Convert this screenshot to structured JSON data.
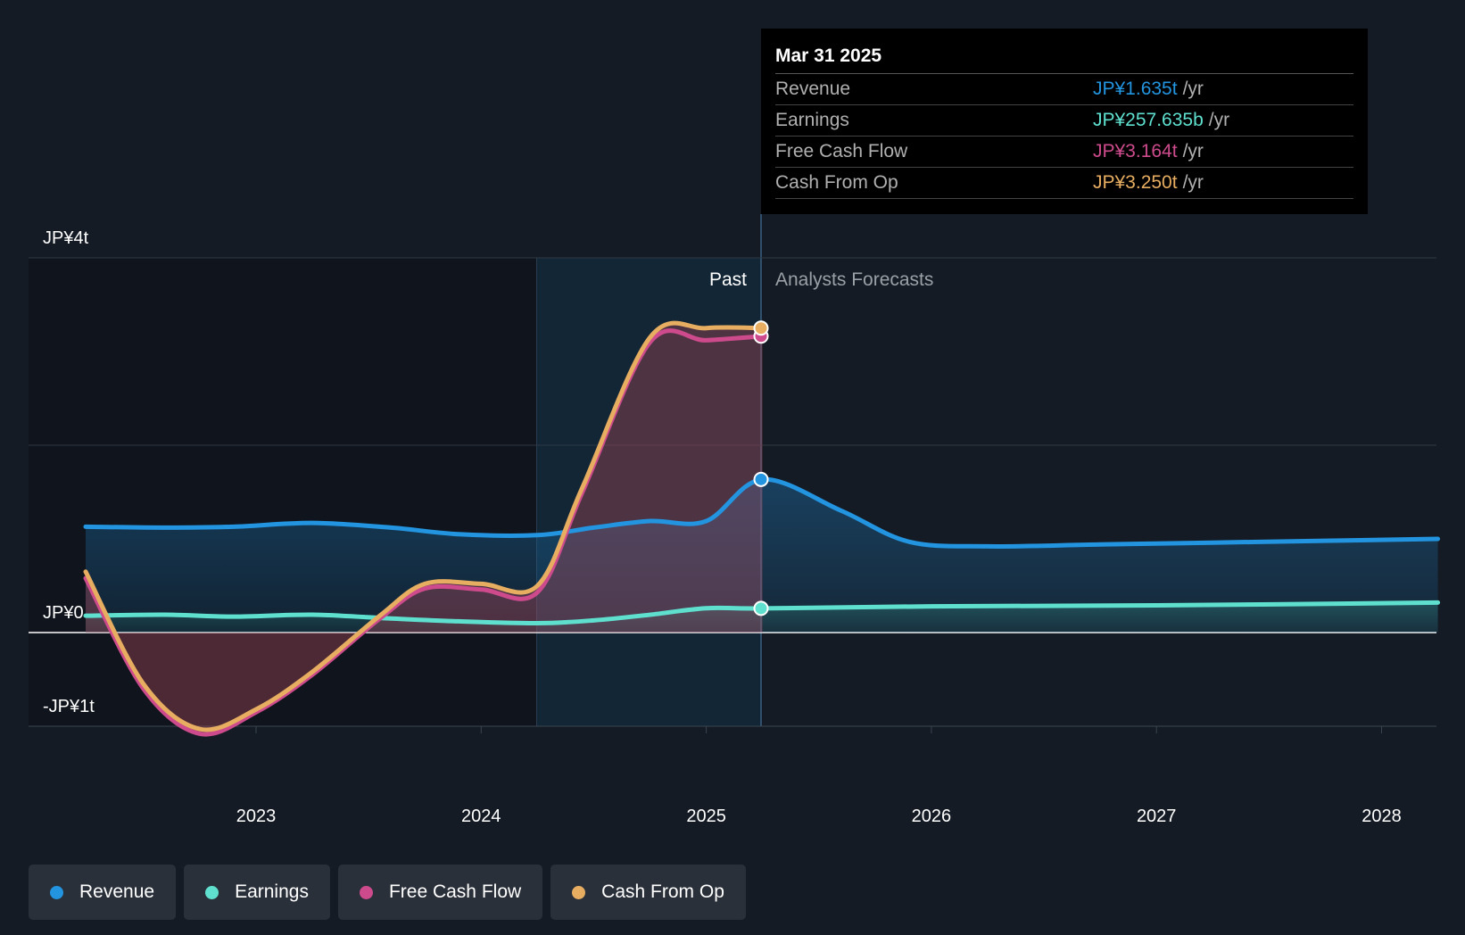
{
  "chart_data": {
    "type": "line",
    "title": "",
    "y_axis": {
      "labels": [
        "JP¥4t",
        "JP¥0",
        "-JP¥1t"
      ],
      "ylim": [
        -1.0,
        4.0
      ],
      "unit": "JP¥ trillion"
    },
    "x_axis": {
      "ticks": [
        "2023",
        "2024",
        "2025",
        "2026",
        "2027",
        "2028"
      ]
    },
    "divider_label_past": "Past",
    "divider_label_forecast": "Analysts Forecasts",
    "series": [
      {
        "name": "Revenue",
        "color": "#2394df",
        "points": [
          [
            2022.25,
            1.13
          ],
          [
            2022.6,
            1.12
          ],
          [
            2022.9,
            1.13
          ],
          [
            2023.25,
            1.17
          ],
          [
            2023.6,
            1.12
          ],
          [
            2023.9,
            1.05
          ],
          [
            2024.25,
            1.04
          ],
          [
            2024.5,
            1.12
          ],
          [
            2024.75,
            1.19
          ],
          [
            2025.0,
            1.19
          ],
          [
            2025.25,
            1.635
          ],
          [
            2025.6,
            1.3
          ],
          [
            2025.9,
            0.97
          ],
          [
            2026.25,
            0.92
          ],
          [
            2026.75,
            0.94
          ],
          [
            2027.25,
            0.96
          ],
          [
            2027.75,
            0.98
          ],
          [
            2028.25,
            1.0
          ]
        ]
      },
      {
        "name": "Earnings",
        "color": "#5fe0cf",
        "points": [
          [
            2022.25,
            0.18
          ],
          [
            2022.6,
            0.19
          ],
          [
            2022.9,
            0.17
          ],
          [
            2023.25,
            0.19
          ],
          [
            2023.6,
            0.15
          ],
          [
            2023.9,
            0.12
          ],
          [
            2024.25,
            0.1
          ],
          [
            2024.5,
            0.13
          ],
          [
            2024.75,
            0.19
          ],
          [
            2025.0,
            0.26
          ],
          [
            2025.25,
            0.258
          ],
          [
            2026.0,
            0.28
          ],
          [
            2027.0,
            0.29
          ],
          [
            2028.25,
            0.32
          ]
        ]
      },
      {
        "name": "Free Cash Flow",
        "color": "#cd4b8c",
        "points": [
          [
            2022.25,
            0.58
          ],
          [
            2022.5,
            -0.6
          ],
          [
            2022.75,
            -1.08
          ],
          [
            2023.0,
            -0.85
          ],
          [
            2023.25,
            -0.45
          ],
          [
            2023.55,
            0.15
          ],
          [
            2023.75,
            0.47
          ],
          [
            2024.0,
            0.46
          ],
          [
            2024.25,
            0.43
          ],
          [
            2024.45,
            1.5
          ],
          [
            2024.75,
            3.1
          ],
          [
            2025.0,
            3.12
          ],
          [
            2025.25,
            3.164
          ]
        ]
      },
      {
        "name": "Cash From Op",
        "color": "#e7ad60",
        "points": [
          [
            2022.25,
            0.65
          ],
          [
            2022.5,
            -0.55
          ],
          [
            2022.75,
            -1.03
          ],
          [
            2023.0,
            -0.82
          ],
          [
            2023.25,
            -0.42
          ],
          [
            2023.55,
            0.18
          ],
          [
            2023.75,
            0.52
          ],
          [
            2024.0,
            0.52
          ],
          [
            2024.25,
            0.5
          ],
          [
            2024.45,
            1.55
          ],
          [
            2024.75,
            3.15
          ],
          [
            2025.0,
            3.25
          ],
          [
            2025.25,
            3.25
          ]
        ]
      }
    ],
    "tooltip": {
      "date": "Mar 31 2025",
      "rows": [
        {
          "name": "Revenue",
          "value": "JP¥1.635t",
          "unit": "/yr",
          "color": "#2394df"
        },
        {
          "name": "Earnings",
          "value": "JP¥257.635b",
          "unit": "/yr",
          "color": "#5fe0cf"
        },
        {
          "name": "Free Cash Flow",
          "value": "JP¥3.164t",
          "unit": "/yr",
          "color": "#cd4b8c"
        },
        {
          "name": "Cash From Op",
          "value": "JP¥3.250t",
          "unit": "/yr",
          "color": "#e7ad60"
        }
      ]
    },
    "legend": [
      {
        "label": "Revenue",
        "color": "#2394df"
      },
      {
        "label": "Earnings",
        "color": "#5fe0cf"
      },
      {
        "label": "Free Cash Flow",
        "color": "#cd4b8c"
      },
      {
        "label": "Cash From Op",
        "color": "#e7ad60"
      }
    ]
  }
}
